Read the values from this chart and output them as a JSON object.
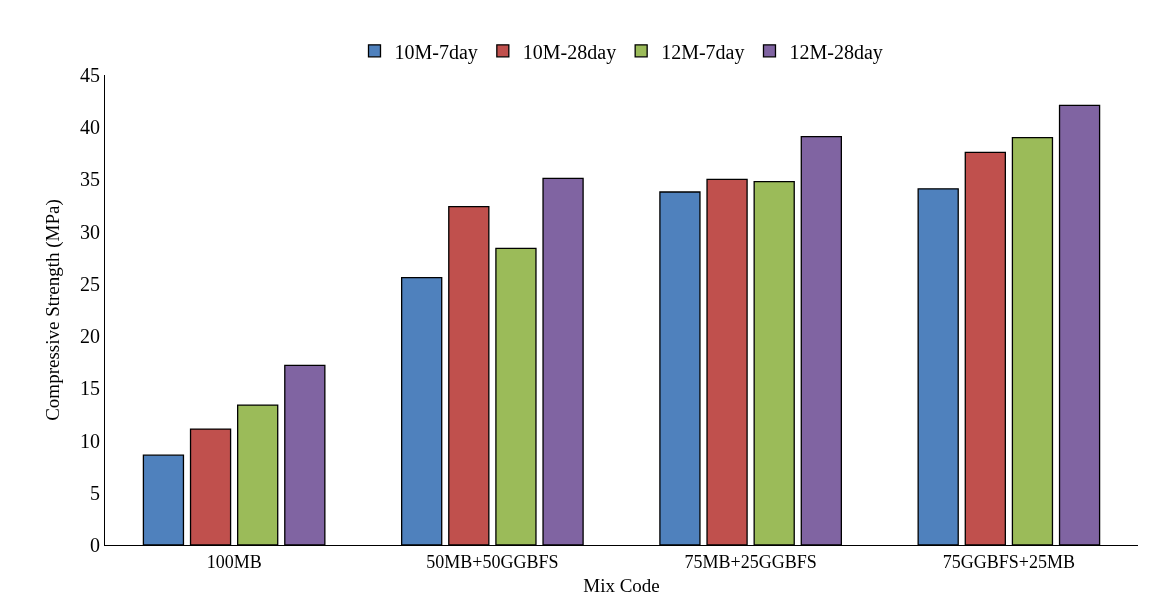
{
  "chart_data": {
    "type": "bar",
    "xlabel": "Mix Code",
    "ylabel": "Compressive Strength (MPa)",
    "categories": [
      "100MB",
      "50MB+50GGBFS",
      "75MB+25GGBFS",
      "75GGBFS+25MB"
    ],
    "series": [
      {
        "name": "10M-7day",
        "color": "#4f81bd",
        "values": [
          8.6,
          25.6,
          33.8,
          34.1
        ]
      },
      {
        "name": "10M-28day",
        "color": "#c0504d",
        "values": [
          11.1,
          32.4,
          35.0,
          37.6
        ]
      },
      {
        "name": "12M-7day",
        "color": "#9bbb59",
        "values": [
          13.4,
          28.4,
          34.8,
          39.0
        ]
      },
      {
        "name": "12M-28day",
        "color": "#8064a2",
        "values": [
          17.2,
          35.1,
          39.1,
          42.1
        ]
      }
    ],
    "ylim": [
      0,
      45
    ],
    "yticks": [
      0,
      5,
      10,
      15,
      20,
      25,
      30,
      35,
      40,
      45
    ],
    "grid": false,
    "legend": "top"
  }
}
